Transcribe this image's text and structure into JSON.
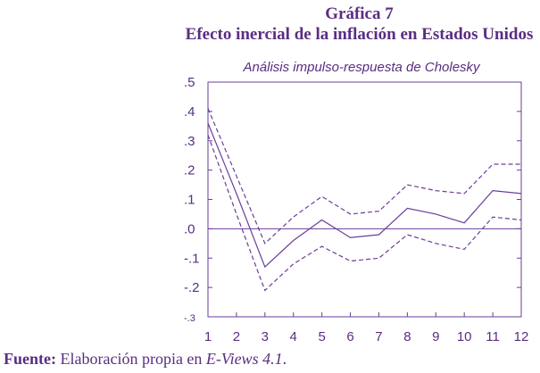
{
  "figure_label": "Gráfica 7",
  "figure_title": "Efecto inercial de la inflación en Estados Unidos",
  "source": {
    "label": "Fuente:",
    "text_before": " Elaboración propia en ",
    "software": "E-Views 4.1",
    "text_after": "."
  },
  "colors": {
    "accent": "#5a2d82",
    "line": "#6a3d9a"
  },
  "chart_data": {
    "type": "line",
    "title": "Análisis impulso-respuesta de Cholesky",
    "xlabel": "",
    "ylabel": "",
    "x": [
      1,
      2,
      3,
      4,
      5,
      6,
      7,
      8,
      9,
      10,
      11,
      12
    ],
    "xlim": [
      1,
      12
    ],
    "ylim": [
      -0.3,
      0.5
    ],
    "y_ticks": [
      -0.3,
      -0.2,
      -0.1,
      0.0,
      0.1,
      0.2,
      0.3,
      0.4,
      0.5
    ],
    "y_tick_labels": [
      "-.3",
      "-.2",
      "-.1",
      ".0",
      ".1",
      ".2",
      ".3",
      ".4",
      ".5"
    ],
    "x_tick_labels": [
      "1",
      "2",
      "3",
      "4",
      "5",
      "6",
      "7",
      "8",
      "9",
      "10",
      "11",
      "12"
    ],
    "zero_line": true,
    "grid": false,
    "series": [
      {
        "style": "solid",
        "values": [
          0.36,
          0.12,
          -0.13,
          -0.04,
          0.03,
          -0.03,
          -0.02,
          0.07,
          0.05,
          0.02,
          0.13,
          0.12
        ]
      },
      {
        "style": "dashed",
        "values": [
          0.41,
          0.18,
          -0.05,
          0.04,
          0.11,
          0.05,
          0.06,
          0.15,
          0.13,
          0.12,
          0.22,
          0.22
        ]
      },
      {
        "style": "dashed",
        "values": [
          0.32,
          0.05,
          -0.21,
          -0.12,
          -0.06,
          -0.11,
          -0.1,
          -0.02,
          -0.05,
          -0.07,
          0.04,
          0.03
        ]
      }
    ]
  }
}
